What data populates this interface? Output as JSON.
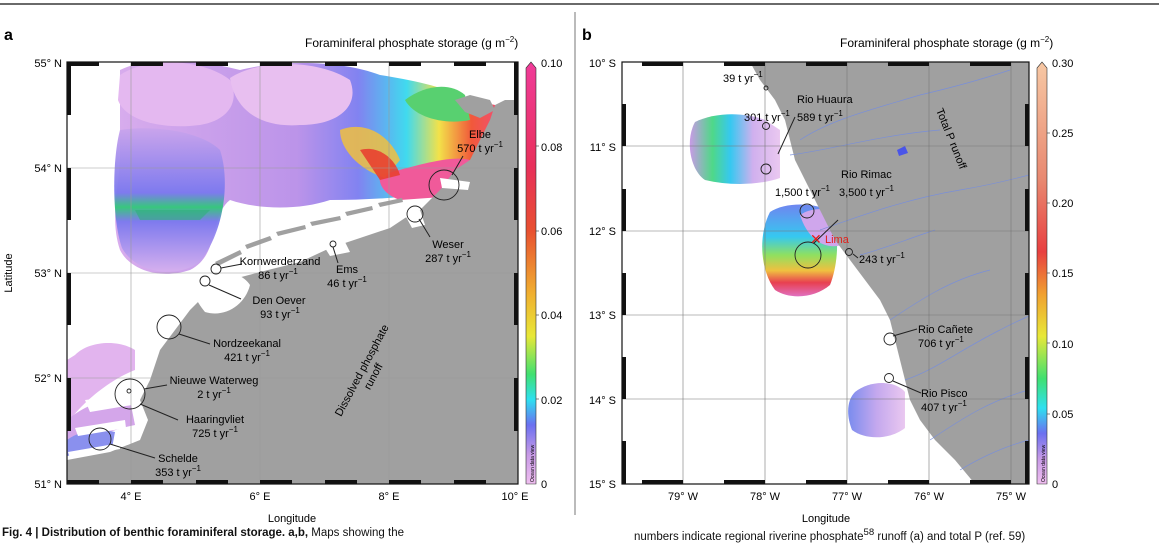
{
  "colors": {
    "land": "#a0a0a0",
    "water": "#ffffff",
    "grid": "#9a9a9a",
    "frame": "#111111",
    "site": "#222222",
    "lima": "#e0201b",
    "rivers": "#7a8fd8"
  },
  "panel_a": {
    "letter": "a",
    "colorbar_title": "Foraminiferal phosphate storage (g m",
    "colorbar_title_sup": "−2",
    "colorbar_title_end": ")",
    "colorbar_ticks": [
      "0.10",
      "0.08",
      "0.06",
      "0.04",
      "0.02",
      "0"
    ],
    "colorbar_watermark": "Ocean data view",
    "y_ticks": [
      "55° N",
      "54° N",
      "53° N",
      "52° N",
      "51° N"
    ],
    "x_ticks": [
      "4° E",
      "6° E",
      "8° E",
      "10° E"
    ],
    "x_label": "Longitude",
    "y_label": "Latitude",
    "runoff_label_1": "Dissolved phosphate",
    "runoff_label_2": "runoff",
    "sites": [
      {
        "name": "Elbe",
        "flux": "570"
      },
      {
        "name": "Weser",
        "flux": "287"
      },
      {
        "name": "Ems",
        "flux": "46"
      },
      {
        "name": "Kornwerderzand",
        "flux": "86"
      },
      {
        "name": "Den Oever",
        "flux": "93"
      },
      {
        "name": "Nordzeekanal",
        "flux": "421"
      },
      {
        "name": "Nieuwe Waterweg",
        "flux": "2"
      },
      {
        "name": "Haaringvliet",
        "flux": "725"
      },
      {
        "name": "Schelde",
        "flux": "353"
      }
    ]
  },
  "panel_b": {
    "letter": "b",
    "colorbar_title": "Foraminiferal phosphate storage (g m",
    "colorbar_title_sup": "−2",
    "colorbar_title_end": ")",
    "colorbar_ticks": [
      "0.30",
      "0.25",
      "0.20",
      "0.15",
      "0.10",
      "0.05",
      "0"
    ],
    "colorbar_watermark": "Ocean data view",
    "y_ticks": [
      "10° S",
      "11° S",
      "12° S",
      "13° S",
      "14° S",
      "15° S"
    ],
    "x_ticks": [
      "79° W",
      "78° W",
      "77° W",
      "76° W",
      "75° W"
    ],
    "x_label": "Longitude",
    "runoff_label": "Total P runoff",
    "lima_label": "Lima",
    "flux_39": "39",
    "huaura_name": "Rio Huaura",
    "huaura_flux": "589",
    "flux_301": "301",
    "rimac_name": "Rio Rimac",
    "rimac_flux": "3,500",
    "flux_1500": "1,500",
    "flux_243": "243",
    "canete_name": "Rio Cañete",
    "canete_flux": "706",
    "pisco_name": "Rio Pisco",
    "pisco_flux": "407"
  },
  "units": {
    "main": " t yr",
    "sup": "−1"
  },
  "caption": {
    "bold": "Fig. 4 | Distribution of benthic foraminiferal storage. a,b,",
    "text": " Maps showing the",
    "right_text": "numbers indicate regional riverine phosphate",
    "right_sup": "58",
    "right_text2": " runoff (a) and total P (ref. 59)"
  }
}
